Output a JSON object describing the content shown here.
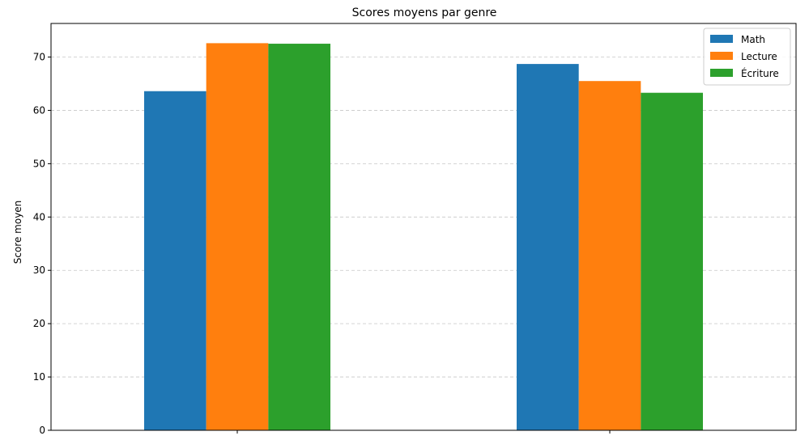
{
  "chart_data": {
    "type": "bar",
    "title": "Scores moyens par genre",
    "xlabel": "",
    "ylabel": "Score moyen",
    "categories": [
      "",
      ""
    ],
    "series": [
      {
        "name": "Math",
        "color": "#1f77b4",
        "values": [
          63.6,
          68.7
        ]
      },
      {
        "name": "Lecture",
        "color": "#ff7f0e",
        "values": [
          72.6,
          65.5
        ]
      },
      {
        "name": "Écriture",
        "color": "#2ca02c",
        "values": [
          72.5,
          63.3
        ]
      }
    ],
    "ylim": [
      0,
      76.3
    ],
    "yticks": [
      0,
      10,
      20,
      30,
      40,
      50,
      60,
      70
    ],
    "grid": "y-dashed",
    "legend_position": "top-right"
  }
}
